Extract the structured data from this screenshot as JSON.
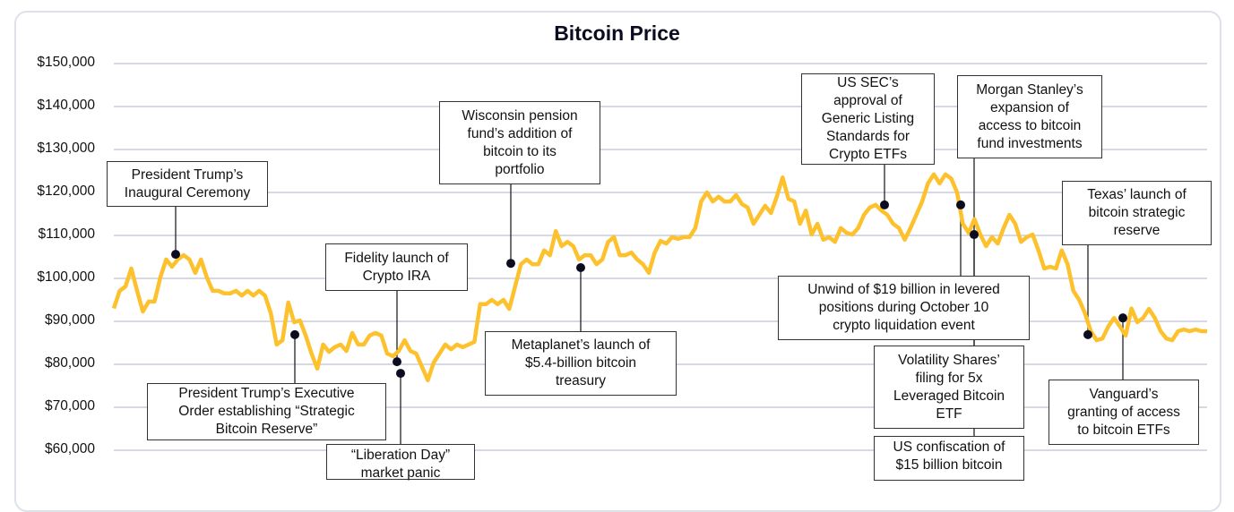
{
  "chart_data": {
    "type": "line",
    "title": "Bitcoin Price",
    "ylim": [
      60000,
      150000
    ],
    "y_ticks": [
      "$60,000",
      "$70,000",
      "$80,000",
      "$90,000",
      "$100,000",
      "$110,000",
      "$120,000",
      "$130,000",
      "$140,000",
      "$150,000"
    ],
    "grid": true,
    "line_color": "#fdc12d",
    "values": [
      93000,
      97100,
      98100,
      102300,
      97100,
      92300,
      94600,
      94600,
      100200,
      104400,
      102700,
      104400,
      105400,
      104400,
      101300,
      104400,
      100200,
      97100,
      97100,
      96500,
      96500,
      97100,
      96000,
      97100,
      96000,
      97100,
      96000,
      91900,
      84600,
      85600,
      94400,
      89800,
      90200,
      86700,
      82500,
      79000,
      84600,
      82900,
      84000,
      84600,
      83100,
      87300,
      84600,
      84600,
      86700,
      87300,
      86700,
      82500,
      81900,
      83100,
      85600,
      83100,
      82500,
      79400,
      76300,
      80400,
      82500,
      84600,
      83500,
      84600,
      84000,
      84600,
      85200,
      94000,
      94000,
      95000,
      94000,
      95000,
      92900,
      98100,
      103300,
      104400,
      103300,
      103300,
      106500,
      105400,
      111000,
      107500,
      108500,
      107500,
      104400,
      105400,
      105400,
      103300,
      104400,
      108500,
      109600,
      105400,
      105400,
      106000,
      104400,
      103300,
      101300,
      106000,
      108700,
      108100,
      109600,
      109200,
      109600,
      109600,
      111700,
      117900,
      120000,
      117900,
      119000,
      117900,
      117900,
      119400,
      117300,
      116500,
      112700,
      114800,
      116900,
      115200,
      119000,
      123500,
      118500,
      117900,
      112700,
      115800,
      110200,
      112700,
      109000,
      109600,
      108500,
      111700,
      110600,
      110200,
      111700,
      114800,
      116500,
      117100,
      115800,
      114800,
      112700,
      111700,
      109000,
      111700,
      114800,
      117900,
      122100,
      124200,
      122100,
      124200,
      123200,
      120000,
      112700,
      110600,
      113800,
      110200,
      107500,
      109600,
      108100,
      111700,
      114800,
      112700,
      108500,
      109600,
      110200,
      106500,
      102300,
      102700,
      102300,
      106500,
      103300,
      97100,
      95000,
      91900,
      87700,
      85600,
      86000,
      88800,
      90800,
      88800,
      86700,
      93000,
      89800,
      90800,
      92900,
      90800,
      87700,
      86000,
      85600,
      87700,
      88100,
      87700,
      88100,
      87700,
      87700
    ],
    "annotations": [
      {
        "label": "President Trump’s\nInaugural Ceremony",
        "price": 105600
      },
      {
        "label": "President Trump’s Executive\nOrder establishing “Strategic\nBitcoin Reserve”",
        "price": 86900
      },
      {
        "label": "Fidelity launch of\nCrypto IRA",
        "price": 80600
      },
      {
        "label": "“Liberation Day”\nmarket panic",
        "price": 77900
      },
      {
        "label": "Wisconsin pension\nfund’s addition of\nbitcoin to its\nportfolio",
        "price": 103500
      },
      {
        "label": "Metaplanet’s launch of\n$5.4-billion bitcoin\ntreasury",
        "price": 102500
      },
      {
        "label": "US SEC’s\napproval of\nGeneric Listing\nStandards for\nCrypto ETFs",
        "price": 117100
      },
      {
        "label": "Morgan Stanley’s\nexpansion of\naccess to bitcoin\nfund investments",
        "price": 110200
      },
      {
        "label": "Unwind of $19 billion in levered\npositions during October 10\ncrypto liquidation event",
        "price": 117100
      },
      {
        "label": "Volatility Shares’\nfiling for 5x\nLeveraged Bitcoin\nETF",
        "price": 110200
      },
      {
        "label": "US confiscation of\n$15 billion bitcoin",
        "price": 110200
      },
      {
        "label": "Texas’ launch of\nbitcoin strategic\nreserve",
        "price": 86900
      },
      {
        "label": "Vanguard’s\ngranting of access\nto bitcoin ETFs",
        "price": 90800
      }
    ]
  }
}
